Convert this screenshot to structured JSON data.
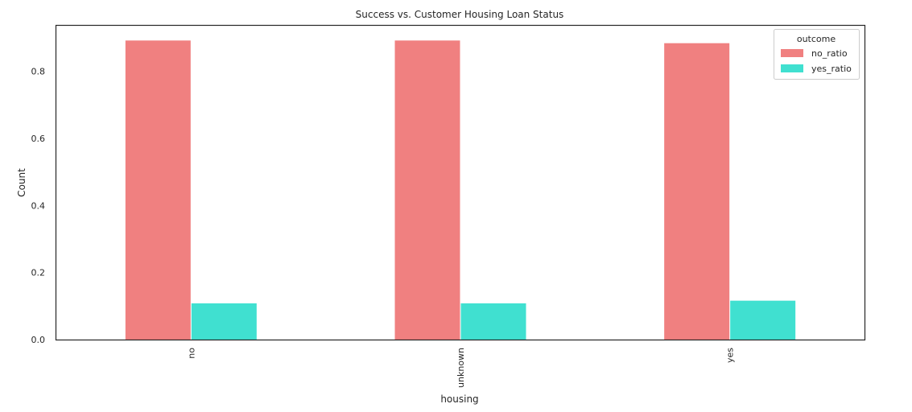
{
  "chart_data": {
    "type": "bar",
    "title": "Success vs. Customer Housing Loan Status",
    "xlabel": "housing",
    "ylabel": "Count",
    "categories": [
      "no",
      "unknown",
      "yes"
    ],
    "series": [
      {
        "name": "no_ratio",
        "color": "#f08080",
        "values": [
          0.892,
          0.892,
          0.884
        ]
      },
      {
        "name": "yes_ratio",
        "color": "#40e0d0",
        "values": [
          0.108,
          0.108,
          0.116
        ]
      }
    ],
    "yticks": [
      "0.0",
      "0.2",
      "0.4",
      "0.6",
      "0.8"
    ],
    "ylim": [
      0,
      0.936
    ],
    "legend": {
      "title": "outcome",
      "placement": "top-right"
    },
    "grid": false
  }
}
